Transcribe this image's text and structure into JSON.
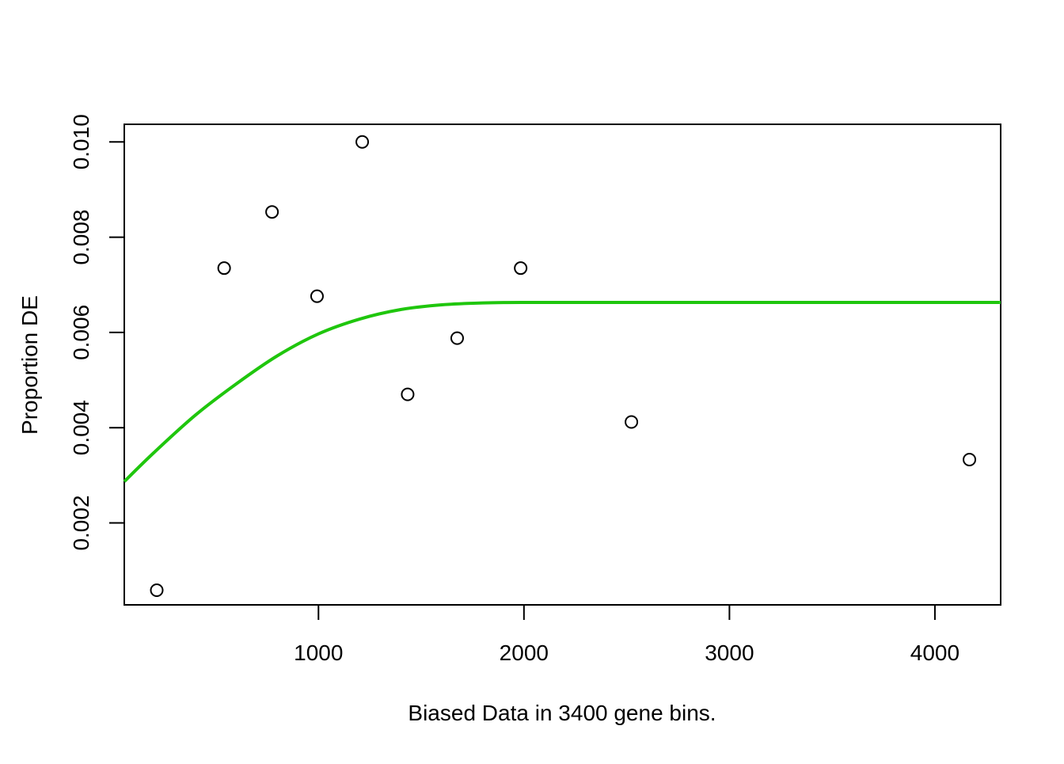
{
  "chart_data": {
    "type": "scatter",
    "title": "",
    "xlabel": "Biased Data in 3400 gene bins.",
    "ylabel": "Proportion DE",
    "xlim": [
      55,
      4320
    ],
    "ylim": [
      0.00028,
      0.01037
    ],
    "x_ticks": [
      {
        "value": 1000,
        "label": "1000"
      },
      {
        "value": 2000,
        "label": "2000"
      },
      {
        "value": 3000,
        "label": "3000"
      },
      {
        "value": 4000,
        "label": "4000"
      }
    ],
    "y_ticks": [
      {
        "value": 0.002,
        "label": "0.002"
      },
      {
        "value": 0.004,
        "label": "0.004"
      },
      {
        "value": 0.006,
        "label": "0.006"
      },
      {
        "value": 0.008,
        "label": "0.008"
      },
      {
        "value": 0.01,
        "label": "0.010"
      }
    ],
    "points": [
      {
        "x": 213,
        "y": 0.000588
      },
      {
        "x": 541,
        "y": 0.00735
      },
      {
        "x": 774,
        "y": 0.00853
      },
      {
        "x": 993,
        "y": 0.00676
      },
      {
        "x": 1213,
        "y": 0.01
      },
      {
        "x": 1434,
        "y": 0.0047
      },
      {
        "x": 1675,
        "y": 0.00588
      },
      {
        "x": 1984,
        "y": 0.00735
      },
      {
        "x": 2523,
        "y": 0.00412
      },
      {
        "x": 4168,
        "y": 0.00333
      }
    ],
    "fit_line": {
      "color": "#1fc60d",
      "x": [
        55,
        200,
        400,
        600,
        800,
        1000,
        1200,
        1400,
        1600,
        1800,
        2000,
        2500,
        3000,
        3500,
        4000,
        4320
      ],
      "y": [
        0.00287,
        0.00348,
        0.00426,
        0.00492,
        0.00551,
        0.00597,
        0.00628,
        0.00648,
        0.00658,
        0.00662,
        0.00663,
        0.00663,
        0.00663,
        0.00663,
        0.00663,
        0.00663
      ]
    },
    "point_style": "open-circle",
    "grid": false,
    "legend": "none"
  }
}
